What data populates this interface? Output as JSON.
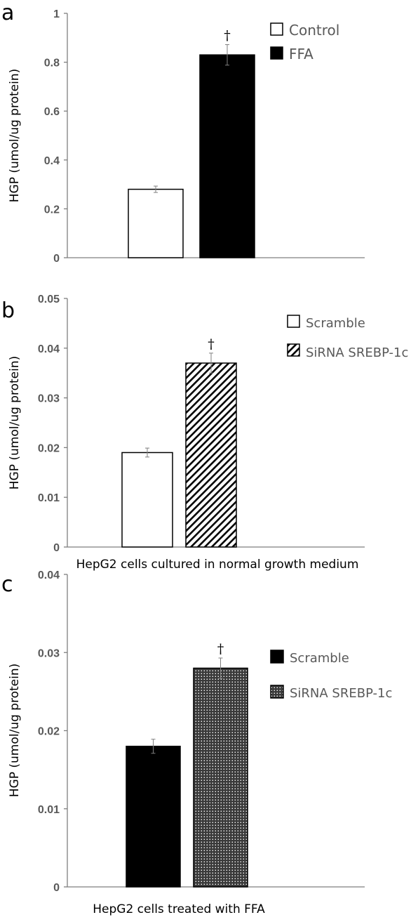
{
  "chart_data": [
    {
      "panel": "a",
      "type": "bar",
      "ylabel": "HGP (umol/ug protein)",
      "xlabel": "",
      "ylim": [
        0,
        1
      ],
      "yticks": [
        "0",
        "0.2",
        "0.4",
        "0.6",
        "0.8",
        "1"
      ],
      "legend_position": "top-right",
      "series": [
        {
          "name": "Control",
          "value": 0.28,
          "error": 0.013,
          "fill": "white",
          "significance": ""
        },
        {
          "name": "FFA",
          "value": 0.83,
          "error": 0.042,
          "fill": "black",
          "significance": "†"
        }
      ]
    },
    {
      "panel": "b",
      "type": "bar",
      "ylabel": "HGP (umol/ug protein)",
      "xlabel": "HepG2 cells cultured in normal growth medium",
      "ylim": [
        0,
        0.05
      ],
      "yticks": [
        "0",
        "0.01",
        "0.02",
        "0.03",
        "0.04",
        "0.05"
      ],
      "legend_position": "top-right",
      "series": [
        {
          "name": "Scramble",
          "value": 0.019,
          "error": 0.0009,
          "fill": "white",
          "significance": ""
        },
        {
          "name": "SiRNA SREBP-1c",
          "value": 0.037,
          "error": 0.002,
          "fill": "diagonal-hatch",
          "significance": "†"
        }
      ]
    },
    {
      "panel": "c",
      "type": "bar",
      "ylabel": "HGP (umol/ug protein)",
      "xlabel": "HepG2  cells treated with FFA",
      "ylim": [
        0,
        0.04
      ],
      "yticks": [
        "0",
        "0.01",
        "0.02",
        "0.03",
        "0.04"
      ],
      "legend_position": "top-right",
      "series": [
        {
          "name": "Scramble",
          "value": 0.018,
          "error": 0.0009,
          "fill": "black",
          "significance": ""
        },
        {
          "name": "SiRNA SREBP-1c",
          "value": 0.028,
          "error": 0.0013,
          "fill": "checker",
          "significance": "†"
        }
      ]
    }
  ]
}
